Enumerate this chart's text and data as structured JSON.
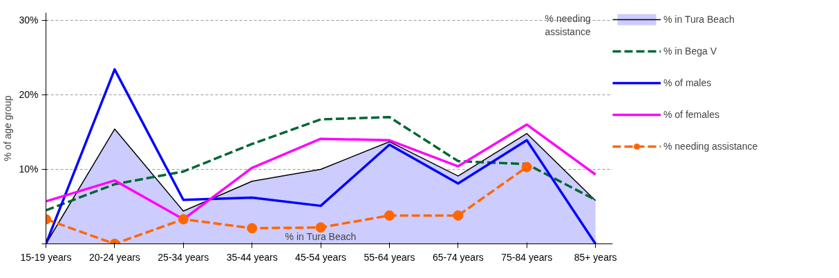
{
  "chart_data": {
    "type": "line",
    "ylabel": "% of age group",
    "categories": [
      "15-19 years",
      "20-24 years",
      "25-34 years",
      "35-44 years",
      "45-54 years",
      "55-64 years",
      "65-74 years",
      "75-84 years",
      "85+ years"
    ],
    "series": [
      {
        "name": "% in Tura Beach",
        "type": "area",
        "color": "#ccccff",
        "values": [
          0,
          15.4,
          4.4,
          8.4,
          10.0,
          13.7,
          9.1,
          14.8,
          5.8
        ]
      },
      {
        "name": "% in Bega V",
        "color": "#006633",
        "line_style": "dashed",
        "values": [
          4.5,
          8.0,
          9.7,
          13.4,
          16.7,
          17.0,
          11.1,
          10.7,
          5.9
        ]
      },
      {
        "name": "% of males",
        "color": "#0000ff",
        "values": [
          0,
          23.4,
          5.9,
          6.2,
          5.1,
          13.3,
          8.1,
          13.9,
          0
        ]
      },
      {
        "name": "% of females",
        "color": "#ff00ff",
        "values": [
          5.7,
          8.5,
          3.3,
          10.2,
          14.1,
          13.9,
          10.4,
          16.0,
          9.3
        ]
      },
      {
        "name": "% needing assistance",
        "color": "#ff6600",
        "line_style": "dashed",
        "marker": "circle",
        "values": [
          3.3,
          0,
          3.3,
          2.1,
          2.2,
          3.8,
          3.8,
          10.3,
          null
        ]
      }
    ],
    "annotations": [
      "% needing assistance",
      "% in Tura Beach"
    ],
    "ylim": [
      0,
      31
    ],
    "yticks": [
      {
        "value": 0,
        "label": null
      },
      {
        "value": 10,
        "label": "10%"
      },
      {
        "value": 20,
        "label": "20%"
      },
      {
        "value": 30,
        "label": "30%"
      }
    ],
    "grid": "y",
    "legend": "right"
  }
}
